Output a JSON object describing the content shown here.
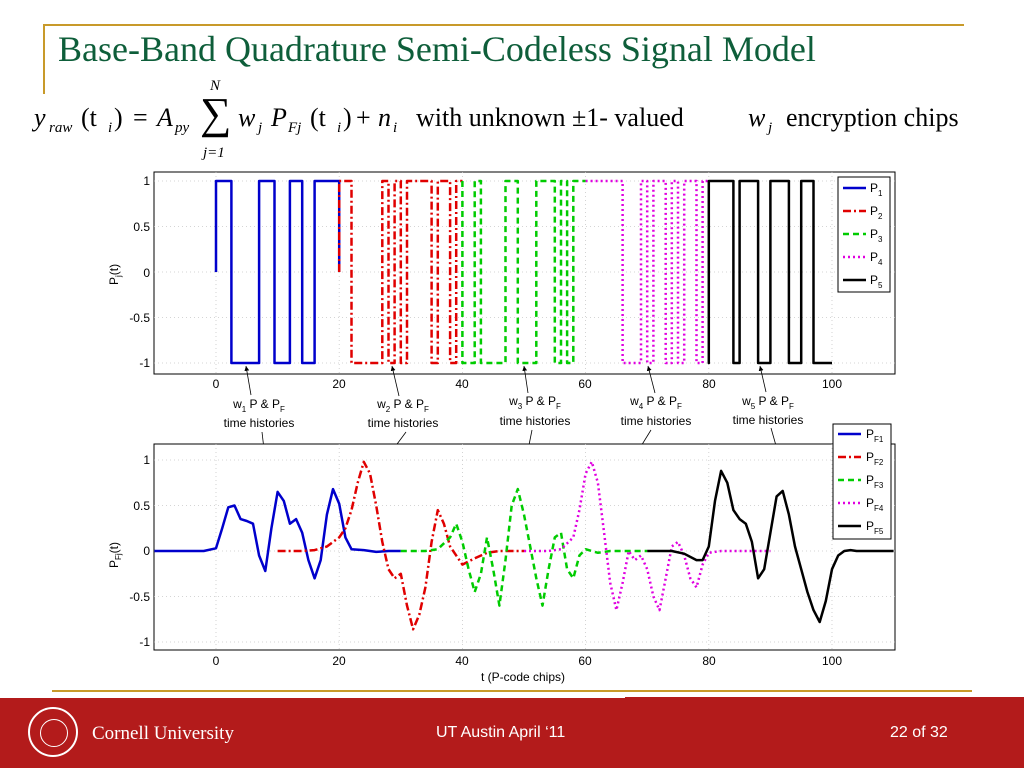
{
  "title": "Base-Band Quadrature Semi-Codeless Signal Model",
  "equation": {
    "lhs_var": "y",
    "lhs_sub": "raw",
    "lhs_arg": "(t",
    "lhs_arg_sub": "i",
    "lhs_close": ")",
    "equals": "=",
    "amp": "A",
    "amp_sub": "py",
    "sum": "∑",
    "sum_top": "N",
    "sum_bottom": "j=1",
    "w": "w",
    "w_sub": "j",
    "p": "P",
    "p_sub": "Fj",
    "p_arg": "(t",
    "p_arg_sub": "i",
    "p_close": ")",
    "plus": "+",
    "noise": "n",
    "noise_sub": "i",
    "with_text": "with unknown ±1- valued",
    "w2": "w",
    "w2_sub": "j",
    "enc_text": "encryption chips"
  },
  "top_axes": {
    "ylabel": "P",
    "ylabel_sub": "j",
    "ylabel_tail": "(t)",
    "yticks": [
      "1",
      "0.5",
      "0",
      "-0.5",
      "-1"
    ],
    "xticks": [
      "0",
      "20",
      "40",
      "60",
      "80",
      "100"
    ],
    "legend": [
      {
        "p": "P",
        "sub": "1"
      },
      {
        "p": "P",
        "sub": "2"
      },
      {
        "p": "P",
        "sub": "3"
      },
      {
        "p": "P",
        "sub": "4"
      },
      {
        "p": "P",
        "sub": "5"
      }
    ]
  },
  "bottom_axes": {
    "ylabel": "P",
    "ylabel_sub": "Fj",
    "ylabel_tail": "(t)",
    "yticks": [
      "1",
      "0.5",
      "0",
      "-0.5",
      "-1"
    ],
    "xticks": [
      "0",
      "20",
      "40",
      "60",
      "80",
      "100"
    ],
    "xlabel": "t (P-code chips)",
    "legend": [
      {
        "p": "P",
        "sub": "F1"
      },
      {
        "p": "P",
        "sub": "F2"
      },
      {
        "p": "P",
        "sub": "F3"
      },
      {
        "p": "P",
        "sub": "F4"
      },
      {
        "p": "P",
        "sub": "F5"
      }
    ]
  },
  "annotations": [
    {
      "w": "w",
      "sub": "1",
      "mid": "P & P",
      "mid_sub": "F",
      "line2": "time histories"
    },
    {
      "w": "w",
      "sub": "2",
      "mid": "P & P",
      "mid_sub": "F",
      "line2": "time histories"
    },
    {
      "w": "w",
      "sub": "3",
      "mid": "P & P",
      "mid_sub": "F",
      "line2": "time histories"
    },
    {
      "w": "w",
      "sub": "4",
      "mid": "P & P",
      "mid_sub": "F",
      "line2": "time histories"
    },
    {
      "w": "w",
      "sub": "5",
      "mid": "P & P",
      "mid_sub": "F",
      "line2": "time histories"
    }
  ],
  "chart_data": [
    {
      "type": "line",
      "xlim": [
        -10,
        110
      ],
      "ylim": [
        -1,
        1
      ],
      "grid": "dotted",
      "legend_position": "top-right",
      "series": [
        {
          "name": "P1",
          "color": "#0000cc",
          "dash": "solid",
          "x": [
            0,
            0,
            0,
            2.5,
            2.5,
            5,
            5,
            7,
            7,
            9.5,
            9.5,
            12,
            12,
            14,
            14,
            16,
            16,
            18,
            18,
            20,
            20,
            20
          ],
          "y": [
            0,
            1,
            1,
            1,
            -1,
            -1,
            -1,
            -1,
            1,
            1,
            -1,
            -1,
            1,
            1,
            -1,
            -1,
            1,
            1,
            1,
            1,
            0,
            0
          ]
        },
        {
          "name": "P2",
          "color": "#e00000",
          "dash": "dashdot",
          "x": [
            20,
            20,
            22,
            22,
            27,
            27,
            28,
            28,
            29,
            29,
            30,
            30,
            31,
            31,
            35,
            35,
            36,
            36,
            38,
            38,
            39,
            39,
            40
          ],
          "y": [
            0,
            1,
            1,
            -1,
            -1,
            1,
            1,
            -1,
            -1,
            1,
            1,
            -1,
            -1,
            1,
            1,
            -1,
            -1,
            1,
            1,
            -1,
            -1,
            1,
            1
          ]
        },
        {
          "name": "P3",
          "color": "#00cc00",
          "dash": "dashed",
          "x": [
            40,
            40,
            42,
            42,
            43,
            43,
            47,
            47,
            49,
            49,
            52,
            52,
            55,
            55,
            56,
            56,
            57,
            57,
            58,
            58,
            60
          ],
          "y": [
            1,
            -1,
            -1,
            1,
            1,
            -1,
            -1,
            1,
            1,
            -1,
            -1,
            1,
            1,
            -1,
            -1,
            1,
            1,
            -1,
            -1,
            1,
            1
          ]
        },
        {
          "name": "P4",
          "color": "#e000e0",
          "dash": "dotted",
          "x": [
            60,
            60,
            61,
            61,
            66,
            66,
            69,
            69,
            70,
            70,
            71,
            71,
            73,
            73,
            74,
            74,
            75,
            75,
            76,
            76,
            78,
            78,
            79,
            79,
            80
          ],
          "y": [
            1,
            1,
            1,
            1,
            1,
            -1,
            -1,
            1,
            1,
            -1,
            -1,
            1,
            1,
            -1,
            -1,
            1,
            1,
            -1,
            -1,
            1,
            1,
            -1,
            -1,
            1,
            1
          ]
        },
        {
          "name": "P5",
          "color": "#000000",
          "dash": "solid",
          "x": [
            80,
            80,
            80,
            84,
            84,
            85,
            85,
            88,
            88,
            90,
            90,
            93,
            93,
            95,
            95,
            97,
            97,
            100
          ],
          "y": [
            0,
            -1,
            1,
            1,
            -1,
            -1,
            1,
            1,
            -1,
            -1,
            1,
            1,
            -1,
            -1,
            1,
            1,
            -1,
            -1
          ]
        }
      ]
    },
    {
      "type": "line",
      "xlim": [
        -10,
        110
      ],
      "ylim": [
        -1,
        1
      ],
      "xlabel": "t (P-code chips)",
      "grid": "dotted",
      "legend_position": "top-right",
      "series": [
        {
          "name": "PF1",
          "color": "#0000cc",
          "dash": "solid",
          "x": [
            -10,
            -2,
            0,
            1,
            2,
            3,
            4,
            5,
            6,
            7,
            8,
            9,
            10,
            11,
            12,
            13,
            14,
            15,
            16,
            17,
            18,
            19,
            20,
            21,
            22,
            24,
            26,
            28,
            30
          ],
          "y": [
            0,
            0,
            0.03,
            0.25,
            0.48,
            0.5,
            0.35,
            0.33,
            0.3,
            -0.05,
            -0.22,
            0.25,
            0.65,
            0.55,
            0.3,
            0.35,
            0.2,
            -0.1,
            -0.3,
            -0.1,
            0.4,
            0.68,
            0.52,
            0.15,
            0.02,
            0.01,
            -0.01,
            0,
            0
          ]
        },
        {
          "name": "PF2",
          "color": "#e00000",
          "dash": "dashdot",
          "x": [
            10,
            14,
            16,
            18,
            20,
            21,
            22,
            23,
            24,
            25,
            26,
            27,
            28,
            29,
            30,
            31,
            32,
            33,
            34,
            35,
            36,
            37,
            38,
            40,
            42,
            44,
            46,
            48,
            50
          ],
          "y": [
            0,
            0,
            0.01,
            0.05,
            0.15,
            0.25,
            0.45,
            0.75,
            0.98,
            0.85,
            0.5,
            0.1,
            -0.2,
            -0.3,
            -0.25,
            -0.6,
            -0.86,
            -0.7,
            -0.4,
            0.1,
            0.45,
            0.3,
            0.05,
            -0.15,
            -0.08,
            -0.02,
            0,
            0,
            0
          ]
        },
        {
          "name": "PF3",
          "color": "#00cc00",
          "dash": "dashed",
          "x": [
            30,
            34,
            36,
            38,
            39,
            40,
            41,
            42,
            43,
            44,
            45,
            46,
            47,
            48,
            49,
            50,
            51,
            52,
            53,
            54,
            55,
            56,
            57,
            58,
            59,
            60,
            62,
            64,
            66,
            70
          ],
          "y": [
            0,
            0,
            0.02,
            0.15,
            0.3,
            0.1,
            -0.2,
            -0.45,
            -0.25,
            0.15,
            -0.2,
            -0.6,
            -0.1,
            0.5,
            0.68,
            0.4,
            0.05,
            -0.3,
            -0.6,
            -0.2,
            0.15,
            0.2,
            -0.2,
            -0.3,
            -0.05,
            0.02,
            -0.02,
            0,
            0,
            0
          ]
        },
        {
          "name": "PF4",
          "color": "#e000e0",
          "dash": "dotted",
          "x": [
            50,
            54,
            56,
            58,
            59,
            60,
            61,
            62,
            63,
            64,
            65,
            66,
            67,
            68,
            69,
            70,
            71,
            72,
            73,
            74,
            75,
            76,
            77,
            78,
            79,
            80,
            82,
            84,
            86,
            90
          ],
          "y": [
            0,
            0,
            0.02,
            0.15,
            0.45,
            0.85,
            0.98,
            0.75,
            0.2,
            -0.35,
            -0.65,
            -0.35,
            0,
            -0.1,
            -0.05,
            -0.2,
            -0.5,
            -0.65,
            -0.3,
            0.05,
            0.1,
            -0.05,
            -0.3,
            -0.4,
            -0.15,
            -0.02,
            0,
            0,
            0,
            0
          ]
        },
        {
          "name": "PF5",
          "color": "#000000",
          "dash": "solid",
          "x": [
            70,
            74,
            76,
            78,
            79,
            80,
            81,
            82,
            83,
            84,
            85,
            86,
            87,
            88,
            89,
            90,
            91,
            92,
            93,
            94,
            95,
            96,
            97,
            98,
            99,
            100,
            101,
            102,
            103,
            104,
            106,
            110
          ],
          "y": [
            0,
            0,
            -0.03,
            -0.1,
            -0.1,
            0.05,
            0.55,
            0.88,
            0.75,
            0.45,
            0.35,
            0.3,
            0.1,
            -0.3,
            -0.2,
            0.2,
            0.6,
            0.66,
            0.4,
            0.05,
            -0.2,
            -0.45,
            -0.65,
            -0.78,
            -0.55,
            -0.2,
            -0.05,
            0,
            0.01,
            0,
            0,
            0
          ]
        }
      ]
    }
  ],
  "footer": {
    "university": "Cornell University",
    "center": "UT Austin April ‘11",
    "page": "22 of 32"
  },
  "colors": {
    "title": "#0e5e3a",
    "accent": "#c89a2a",
    "footer": "#b31b1b"
  }
}
